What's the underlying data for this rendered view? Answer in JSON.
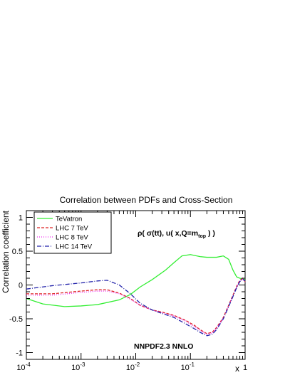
{
  "chart_data": {
    "type": "line",
    "title": "Correlation between PDFs and Cross-Section",
    "xlabel": "x",
    "ylabel": "Correlation coefficient",
    "xscale": "log",
    "xlim": [
      0.0001,
      1
    ],
    "ylim": [
      -1.1,
      1.1
    ],
    "grid": false,
    "legend_position": "top-left",
    "x_tick_labels": [
      "10",
      "10",
      "10",
      "10",
      "1"
    ],
    "x_tick_exponents": [
      "-4",
      "-3",
      "-2",
      "-1",
      ""
    ],
    "x_tick_values": [
      0.0001,
      0.001,
      0.01,
      0.1,
      1
    ],
    "y_tick_labels": [
      "-1",
      "-0.5",
      "0",
      "0.5",
      "1"
    ],
    "y_tick_values": [
      -1,
      -0.5,
      0,
      0.5,
      1
    ],
    "annotations": {
      "rho_label": {
        "a": "ρ( σ(tt), u( x,Q=m",
        "sub": "top",
        "b": " ) )"
      },
      "nnpdf_label": "NNPDF2.3 NNLO"
    },
    "series": [
      {
        "name": "TeVatron",
        "color": "#33ee33",
        "dash": "solid",
        "x": [
          0.0001,
          0.0002,
          0.0005,
          0.001,
          0.002,
          0.005,
          0.008,
          0.012,
          0.02,
          0.035,
          0.05,
          0.07,
          0.1,
          0.15,
          0.2,
          0.3,
          0.4,
          0.5,
          0.6,
          0.7,
          0.8,
          0.9,
          1.0
        ],
        "y": [
          -0.2,
          -0.28,
          -0.32,
          -0.31,
          -0.29,
          -0.22,
          -0.14,
          -0.03,
          0.08,
          0.22,
          0.33,
          0.43,
          0.45,
          0.42,
          0.41,
          0.41,
          0.43,
          0.38,
          0.22,
          0.12,
          0.1,
          0.09,
          0.08
        ]
      },
      {
        "name": "LHC 7 TeV",
        "color": "#dd2222",
        "dash": "dashed",
        "x": [
          0.0001,
          0.0003,
          0.001,
          0.002,
          0.003,
          0.005,
          0.008,
          0.012,
          0.02,
          0.03,
          0.05,
          0.08,
          0.12,
          0.15,
          0.2,
          0.25,
          0.3,
          0.4,
          0.5,
          0.6,
          0.7,
          0.8,
          0.9,
          1.0
        ],
        "y": [
          -0.13,
          -0.13,
          -0.09,
          -0.07,
          -0.07,
          -0.12,
          -0.2,
          -0.3,
          -0.37,
          -0.4,
          -0.45,
          -0.52,
          -0.6,
          -0.66,
          -0.72,
          -0.7,
          -0.63,
          -0.48,
          -0.3,
          -0.15,
          -0.02,
          0.07,
          0.1,
          0.05
        ]
      },
      {
        "name": "LHC 8 TeV",
        "color": "#ee22ee",
        "dash": "dotted",
        "x": [
          0.0001,
          0.0003,
          0.001,
          0.002,
          0.003,
          0.005,
          0.008,
          0.012,
          0.02,
          0.03,
          0.05,
          0.08,
          0.12,
          0.15,
          0.2,
          0.25,
          0.3,
          0.4,
          0.5,
          0.6,
          0.7,
          0.8,
          0.9,
          1.0
        ],
        "y": [
          -0.15,
          -0.15,
          -0.11,
          -0.09,
          -0.09,
          -0.13,
          -0.21,
          -0.3,
          -0.37,
          -0.41,
          -0.46,
          -0.53,
          -0.62,
          -0.67,
          -0.73,
          -0.71,
          -0.64,
          -0.49,
          -0.31,
          -0.16,
          -0.03,
          0.06,
          0.09,
          0.04
        ]
      },
      {
        "name": "LHC 14 TeV",
        "color": "#2222aa",
        "dash": "dashdot",
        "x": [
          0.0001,
          0.0003,
          0.001,
          0.002,
          0.003,
          0.005,
          0.008,
          0.012,
          0.02,
          0.03,
          0.05,
          0.08,
          0.12,
          0.15,
          0.2,
          0.25,
          0.3,
          0.4,
          0.5,
          0.6,
          0.7,
          0.8,
          0.9,
          1.0
        ],
        "y": [
          -0.06,
          -0.01,
          0.03,
          0.06,
          0.07,
          0.0,
          -0.13,
          -0.27,
          -0.37,
          -0.42,
          -0.48,
          -0.57,
          -0.65,
          -0.7,
          -0.75,
          -0.73,
          -0.66,
          -0.5,
          -0.32,
          -0.17,
          -0.04,
          0.05,
          0.09,
          0.06
        ]
      }
    ]
  }
}
